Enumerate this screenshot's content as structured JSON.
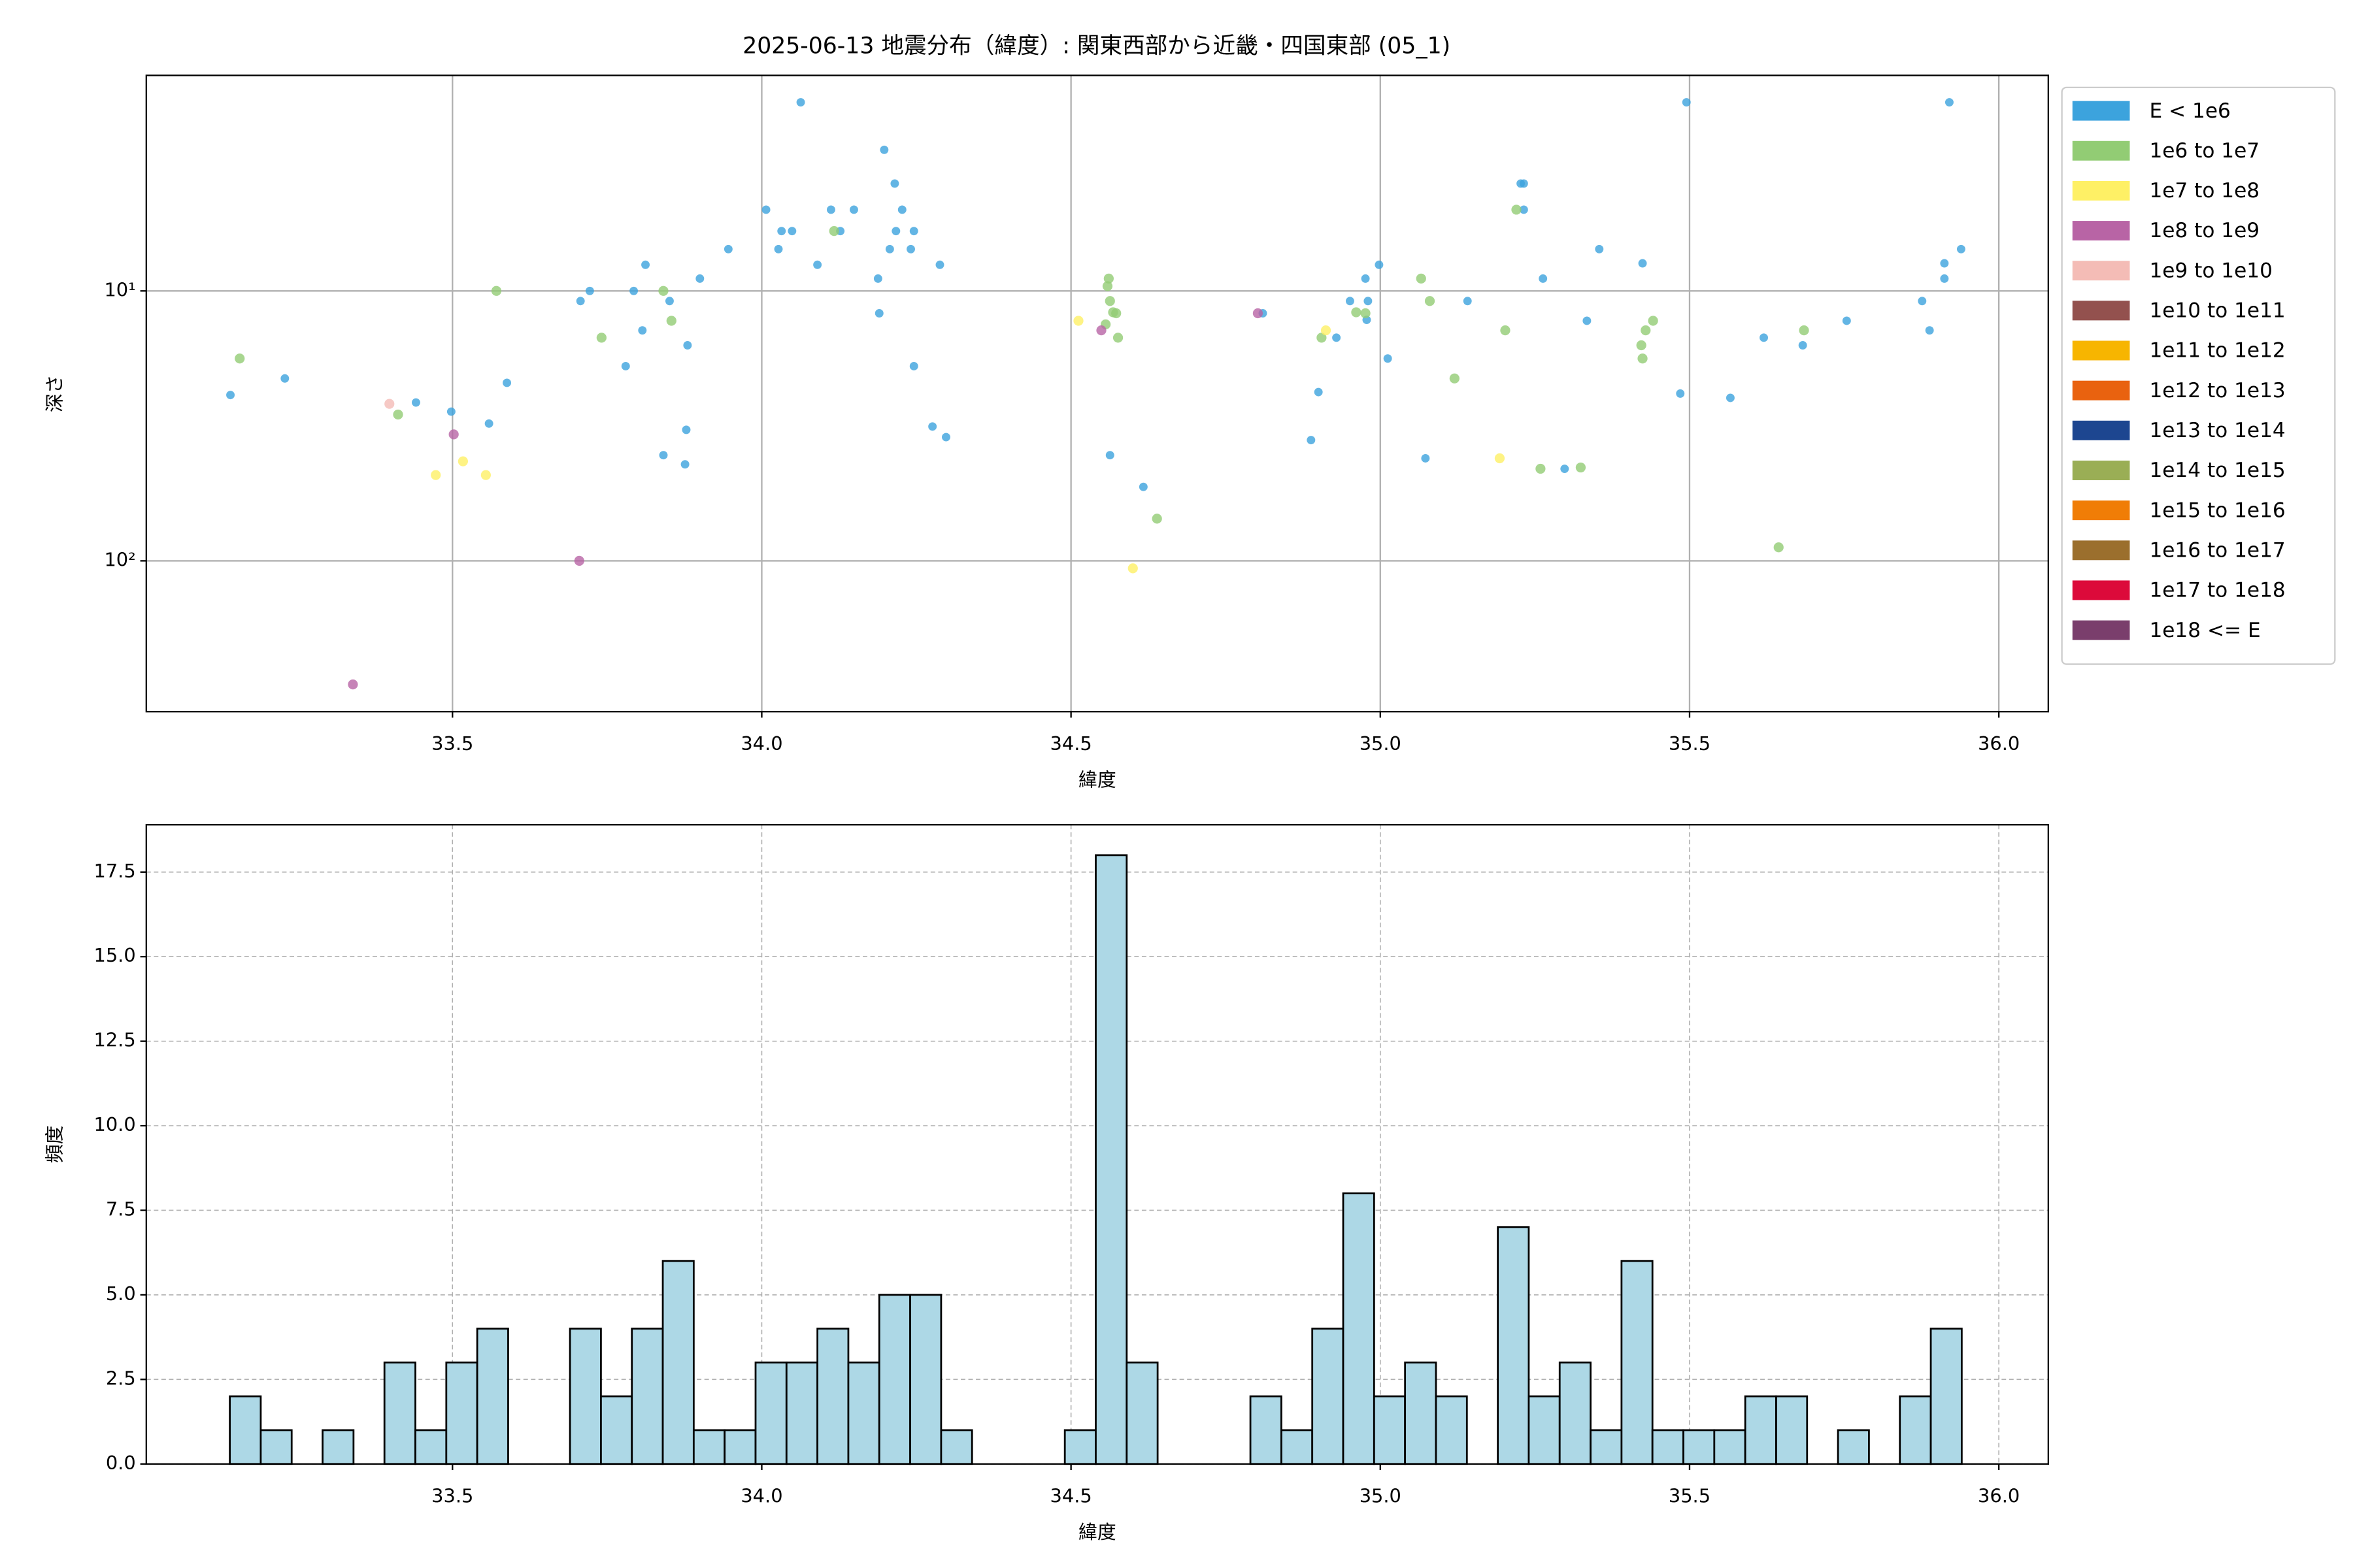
{
  "chart_data": [
    {
      "type": "scatter",
      "title": "2025-06-13 地震分布（緯度）: 関東西部から近畿・四国東部 (05_1)",
      "xlabel": "緯度",
      "ylabel": "深さ",
      "xlim": [
        33.005,
        36.08
      ],
      "xticks": [
        33.5,
        {
          "value": 34,
          "label": "34.0"
        },
        34.5,
        {
          "value": 35,
          "label": "35.0"
        },
        35.5,
        {
          "value": 36,
          "label": "36.0"
        }
      ],
      "ylim": [
        1.59,
        362
      ],
      "ylog": true,
      "yinvert": true,
      "yticks": [
        {
          "value": 10,
          "label": "10¹"
        },
        {
          "value": 100,
          "label": "10²"
        }
      ],
      "grid": true,
      "legend": "outside right",
      "series": [
        {
          "name": "E < 1e6",
          "color": "#3ca3dd",
          "x": [
            33.141,
            33.229,
            33.441,
            33.498,
            33.559,
            33.588,
            33.707,
            33.722,
            33.78,
            33.793,
            33.807,
            33.812,
            33.841,
            33.851,
            33.876,
            33.878,
            33.88,
            33.9,
            33.946,
            34.007,
            34.027,
            34.032,
            34.049,
            34.063,
            34.09,
            34.112,
            34.127,
            34.149,
            34.188,
            34.19,
            34.198,
            34.207,
            34.215,
            34.217,
            34.227,
            34.241,
            34.246,
            34.246,
            34.276,
            34.288,
            34.298,
            34.563,
            34.617,
            34.81,
            34.888,
            34.9,
            34.929,
            34.951,
            34.976,
            34.98,
            34.978,
            34.998,
            35.012,
            35.073,
            35.141,
            35.227,
            35.232,
            35.232,
            35.263,
            35.298,
            35.334,
            35.354,
            35.424,
            35.485,
            35.495,
            35.566,
            35.62,
            35.683,
            35.754,
            35.876,
            35.888,
            35.912,
            35.912,
            35.92,
            35.939
          ],
          "values": [
            24.3,
            21.1,
            25.9,
            28,
            31,
            21.9,
            10.9,
            10,
            19,
            10,
            14,
            8,
            40.6,
            10.9,
            43.9,
            32.7,
            15.9,
            9,
            7,
            5,
            7,
            6,
            6,
            2,
            8,
            5,
            6,
            5,
            9,
            12.1,
            3,
            7,
            4,
            6,
            5,
            7,
            6,
            19,
            31.8,
            8,
            34.8,
            40.6,
            53.2,
            12.1,
            35.7,
            23.7,
            14.9,
            10.9,
            9,
            10.9,
            12.8,
            8,
            17.8,
            41.7,
            10.9,
            4,
            4,
            5,
            9,
            45.6,
            12.9,
            7,
            7.9,
            24,
            2,
            24.9,
            14.9,
            15.9,
            12.9,
            10.9,
            14,
            7.9,
            9,
            2,
            7
          ]
        },
        {
          "name": "1e6 to 1e7",
          "color": "#92cc74",
          "x": [
            33.156,
            33.412,
            33.571,
            33.741,
            33.841,
            33.854,
            34.117,
            34.559,
            34.561,
            34.563,
            34.556,
            34.568,
            34.573,
            34.576,
            34.639,
            34.905,
            34.961,
            34.976,
            35.066,
            35.08,
            35.12,
            35.202,
            35.22,
            35.259,
            35.324,
            35.422,
            35.424,
            35.429,
            35.441,
            35.644,
            35.685
          ],
          "values": [
            17.8,
            28.7,
            10,
            14.9,
            10,
            12.9,
            6,
            9.6,
            9,
            10.9,
            13.3,
            12,
            12.1,
            14.9,
            69.8,
            14.9,
            12,
            12.1,
            9,
            10.9,
            21.1,
            14,
            5,
            45.6,
            45.1,
            15.9,
            17.8,
            14,
            12.9,
            89.1,
            14
          ]
        },
        {
          "name": "1e7 to 1e8",
          "color": "#fef065",
          "x": [
            33.473,
            33.517,
            33.554,
            34.512,
            34.6,
            34.912,
            35.193
          ],
          "values": [
            48.1,
            42.8,
            48.1,
            12.9,
            106.6,
            14,
            41.7
          ]
        },
        {
          "name": "1e8 to 1e9",
          "color": "#b864a5",
          "x": [
            33.502,
            33.705,
            33.339,
            34.549,
            34.802
          ],
          "values": [
            34,
            100,
            287,
            14,
            12.1
          ]
        },
        {
          "name": "1e9 to 1e10",
          "color": "#f4bcb6",
          "x": [
            33.398
          ],
          "values": [
            26.2
          ]
        },
        {
          "name": "1e10 to 1e11",
          "color": "#93514e",
          "x": [],
          "values": []
        },
        {
          "name": "1e11 to 1e12",
          "color": "#f7b500",
          "x": [],
          "values": []
        },
        {
          "name": "1e12 to 1e13",
          "color": "#e9620f",
          "x": [],
          "values": []
        },
        {
          "name": "1e13 to 1e14",
          "color": "#1d4690",
          "x": [],
          "values": []
        },
        {
          "name": "1e14 to 1e15",
          "color": "#9aae55",
          "x": [],
          "values": []
        },
        {
          "name": "1e15 to 1e16",
          "color": "#f07d06",
          "x": [],
          "values": []
        },
        {
          "name": "1e16 to 1e17",
          "color": "#9b6f2d",
          "x": [],
          "values": []
        },
        {
          "name": "1e17 to 1e18",
          "color": "#dc0a3a",
          "x": [],
          "values": []
        },
        {
          "name": "1e18 <= E",
          "color": "#7a3e6c",
          "x": [],
          "values": []
        }
      ]
    },
    {
      "type": "histogram",
      "xlabel": "緯度",
      "ylabel": "頻度",
      "color": "#add8e6",
      "edgecolor": "#000000",
      "xlim": [
        33.005,
        36.08
      ],
      "xticks": [
        33.5,
        {
          "value": 34,
          "label": "34.0"
        },
        34.5,
        {
          "value": 35,
          "label": "35.0"
        },
        35.5,
        {
          "value": 36,
          "label": "36.0"
        }
      ],
      "ylim": [
        0,
        18.9
      ],
      "yticks": [
        {
          "value": 0,
          "label": "0.0"
        },
        2.5,
        {
          "value": 5,
          "label": "5.0"
        },
        7.5,
        {
          "value": 10,
          "label": "10.0"
        },
        12.5,
        {
          "value": 15,
          "label": "15.0"
        },
        17.5
      ],
      "grid": true,
      "grid_style": "dashed",
      "bins": [
        33.14,
        33.19,
        33.24,
        33.29,
        33.34,
        33.39,
        33.44,
        33.49,
        33.54,
        33.59,
        33.64,
        33.69,
        33.74,
        33.79,
        33.84,
        33.89,
        33.94,
        33.99,
        34.04,
        34.09,
        34.14,
        34.19,
        34.24,
        34.29,
        34.34,
        34.39,
        34.44,
        34.49,
        34.54,
        34.59,
        34.64,
        34.69,
        34.74,
        34.79,
        34.84,
        34.89,
        34.94,
        34.99,
        35.04,
        35.09,
        35.14,
        35.19,
        35.24,
        35.29,
        35.34,
        35.39,
        35.44,
        35.49,
        35.54,
        35.59,
        35.64,
        35.69,
        35.74,
        35.79,
        35.84,
        35.89,
        35.94
      ],
      "values": [
        2,
        1,
        0,
        1,
        0,
        3,
        1,
        3,
        4,
        0,
        0,
        4,
        2,
        4,
        6,
        1,
        1,
        3,
        3,
        4,
        3,
        5,
        5,
        1,
        0,
        0,
        0,
        1,
        18,
        3,
        0,
        0,
        0,
        2,
        1,
        4,
        8,
        2,
        3,
        2,
        0,
        7,
        2,
        3,
        1,
        6,
        1,
        1,
        1,
        2,
        2,
        0,
        1,
        0,
        2,
        4
      ]
    }
  ]
}
